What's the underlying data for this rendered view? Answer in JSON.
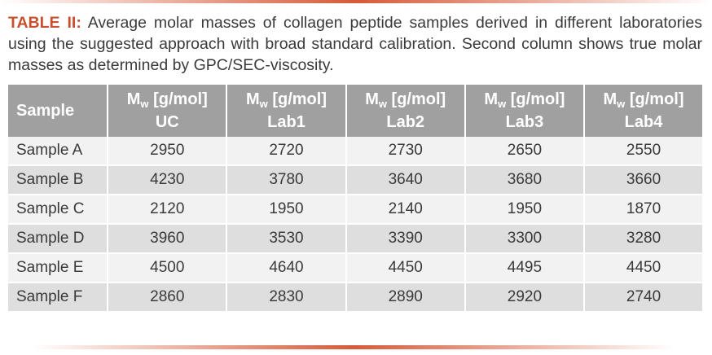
{
  "caption": {
    "label": "TABLE II:",
    "text": "Average molar masses of collagen peptide samples derived in different laboratories using the suggested approach with broad standard calibration. Second column shows true molar masses as determined by GPC/SEC-viscosity."
  },
  "colors": {
    "accent": "#c8502e",
    "rule": "#d65b3a",
    "header_bg": "#a0a0a0",
    "row_light": "#f2f2f2",
    "row_dark": "#dedede"
  },
  "table": {
    "header_sample": "Sample",
    "columns": [
      {
        "base": "M",
        "sub": "w",
        "unit": " [g/mol]",
        "name": "UC"
      },
      {
        "base": "M",
        "sub": "w",
        "unit": " [g/mol]",
        "name": "Lab1"
      },
      {
        "base": "M",
        "sub": "w",
        "unit": " [g/mol]",
        "name": "Lab2"
      },
      {
        "base": "M",
        "sub": "w",
        "unit": " [g/mol]",
        "name": "Lab3"
      },
      {
        "base": "M",
        "sub": "w",
        "unit": " [g/mol]",
        "name": "Lab4"
      }
    ],
    "rows": [
      {
        "sample": "Sample A",
        "values": [
          "2950",
          "2720",
          "2730",
          "2650",
          "2550"
        ]
      },
      {
        "sample": "Sample B",
        "values": [
          "4230",
          "3780",
          "3640",
          "3680",
          "3660"
        ]
      },
      {
        "sample": "Sample C",
        "values": [
          "2120",
          "1950",
          "2140",
          "1950",
          "1870"
        ]
      },
      {
        "sample": "Sample D",
        "values": [
          "3960",
          "3530",
          "3390",
          "3300",
          "3280"
        ]
      },
      {
        "sample": "Sample E",
        "values": [
          "4500",
          "4640",
          "4450",
          "4495",
          "4450"
        ]
      },
      {
        "sample": "Sample F",
        "values": [
          "2860",
          "2830",
          "2890",
          "2920",
          "2740"
        ]
      }
    ]
  }
}
